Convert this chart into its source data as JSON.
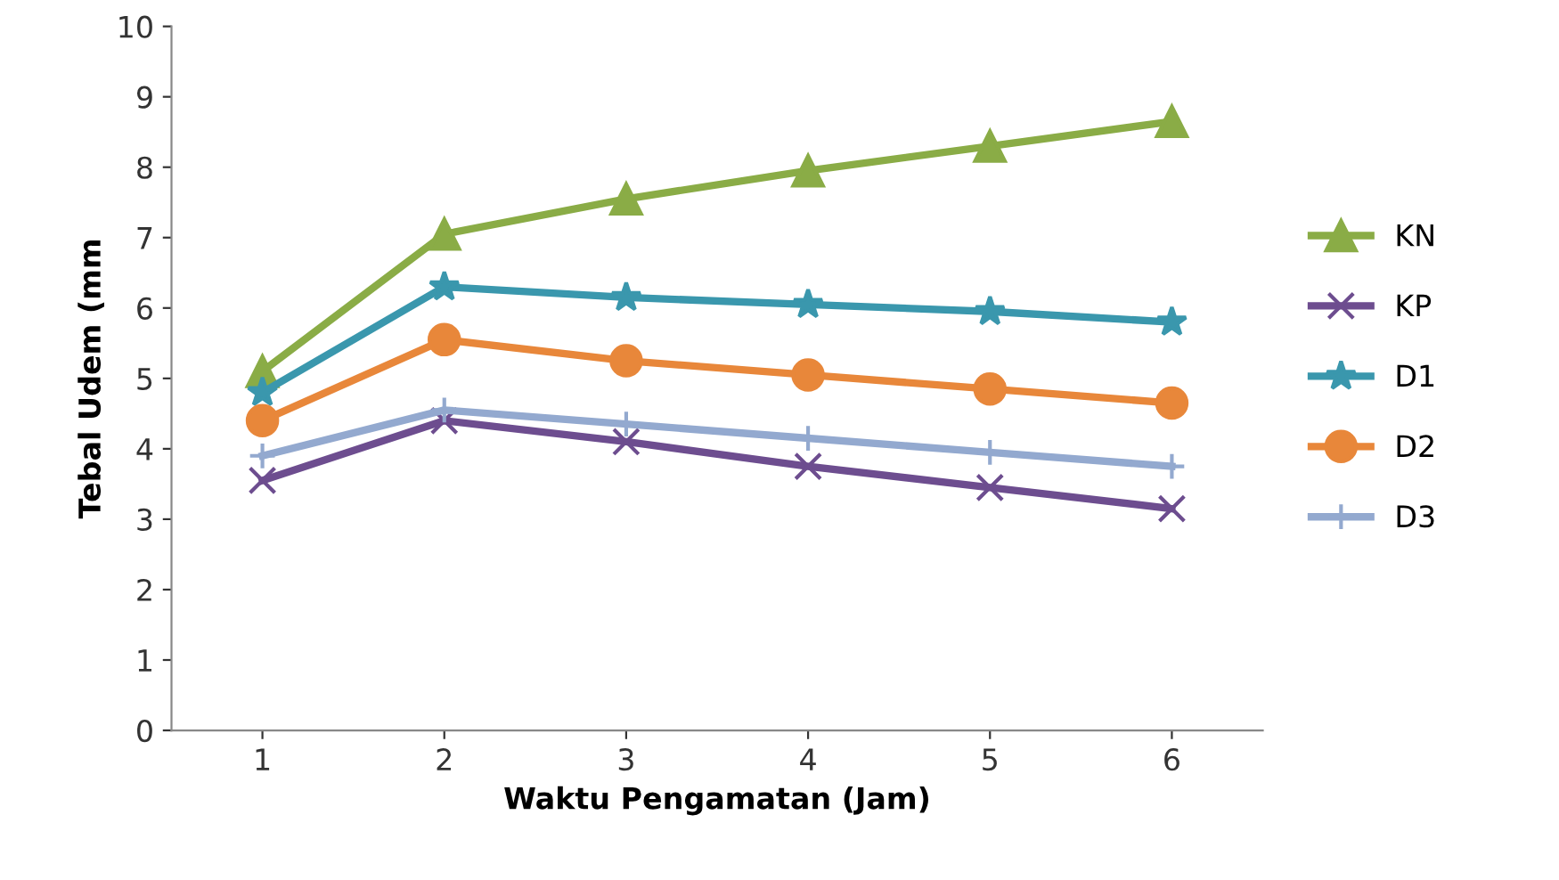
{
  "chart_data": {
    "type": "line",
    "xlabel": "Waktu Pengamatan (Jam)",
    "ylabel": "Tebal Udem (mm",
    "categories": [
      "1",
      "2",
      "3",
      "4",
      "5",
      "6"
    ],
    "ylim": [
      0,
      10
    ],
    "yticks": [
      0,
      1,
      2,
      3,
      4,
      5,
      6,
      7,
      8,
      9,
      10
    ],
    "grid": false,
    "legend": "right",
    "series": [
      {
        "name": "KN",
        "color": "#8aac46",
        "marker": "triangle",
        "values": [
          5.1,
          7.05,
          7.55,
          7.95,
          8.3,
          8.65
        ]
      },
      {
        "name": "KP",
        "color": "#6d4d8f",
        "marker": "cross",
        "values": [
          3.55,
          4.4,
          4.1,
          3.75,
          3.45,
          3.15
        ]
      },
      {
        "name": "D1",
        "color": "#3a97ad",
        "marker": "star",
        "values": [
          4.8,
          6.3,
          6.15,
          6.05,
          5.95,
          5.8
        ]
      },
      {
        "name": "D2",
        "color": "#e8873a",
        "marker": "circle",
        "values": [
          4.4,
          5.55,
          5.25,
          5.05,
          4.85,
          4.65
        ]
      },
      {
        "name": "D3",
        "color": "#93a9cf",
        "marker": "plus",
        "values": [
          3.9,
          4.55,
          4.35,
          4.15,
          3.95,
          3.75
        ]
      }
    ]
  }
}
